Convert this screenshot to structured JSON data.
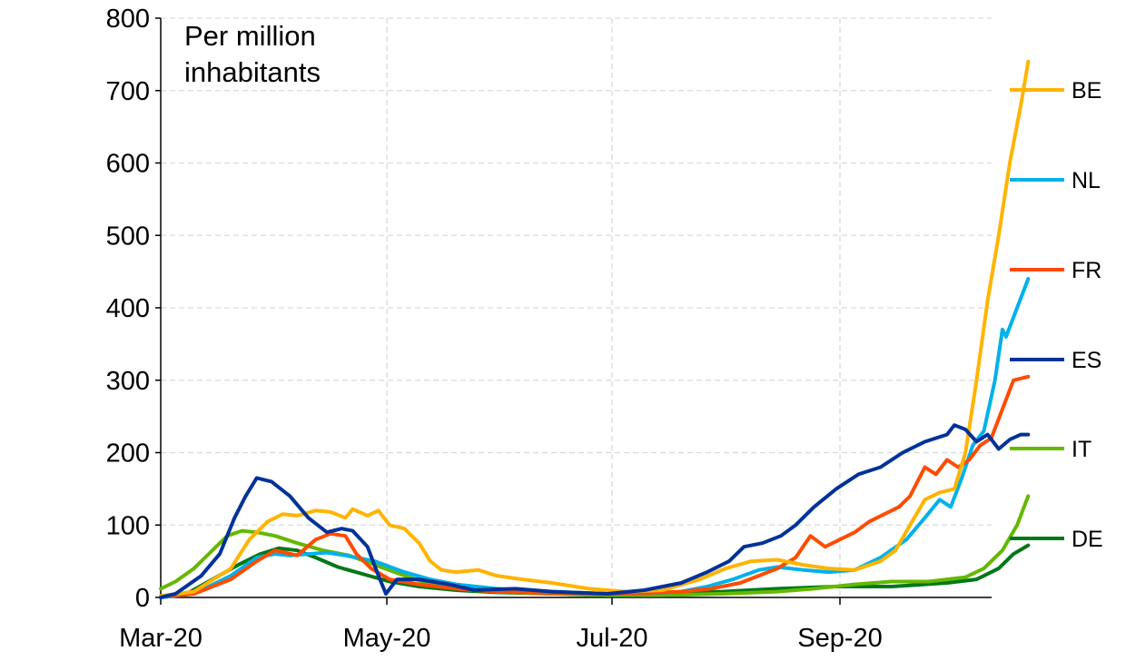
{
  "chart_data": {
    "type": "line",
    "annotation": [
      "Per million",
      "inhabitants"
    ],
    "x_ticks": [
      "Mar-20",
      "May-20",
      "Jul-20",
      "Sep-20"
    ],
    "x_range": [
      "2020-03-01",
      "2020-10-15"
    ],
    "ylim": [
      0,
      800
    ],
    "y_ticks": [
      0,
      100,
      200,
      300,
      400,
      500,
      600,
      700,
      800
    ],
    "grid": true,
    "legend_position": "right",
    "series": [
      {
        "name": "BE",
        "color": "#FFB400",
        "points": [
          [
            "2020-03-01",
            2
          ],
          [
            "2020-03-10",
            8
          ],
          [
            "2020-03-20",
            40
          ],
          [
            "2020-03-25",
            80
          ],
          [
            "2020-03-30",
            105
          ],
          [
            "2020-04-03",
            115
          ],
          [
            "2020-04-07",
            113
          ],
          [
            "2020-04-12",
            120
          ],
          [
            "2020-04-16",
            118
          ],
          [
            "2020-04-20",
            110
          ],
          [
            "2020-04-22",
            122
          ],
          [
            "2020-04-26",
            113
          ],
          [
            "2020-04-29",
            120
          ],
          [
            "2020-05-02",
            100
          ],
          [
            "2020-05-06",
            95
          ],
          [
            "2020-05-10",
            75
          ],
          [
            "2020-05-13",
            50
          ],
          [
            "2020-05-16",
            38
          ],
          [
            "2020-05-20",
            35
          ],
          [
            "2020-05-26",
            38
          ],
          [
            "2020-05-31",
            30
          ],
          [
            "2020-06-07",
            25
          ],
          [
            "2020-06-15",
            20
          ],
          [
            "2020-06-25",
            12
          ],
          [
            "2020-07-05",
            8
          ],
          [
            "2020-07-15",
            10
          ],
          [
            "2020-07-25",
            25
          ],
          [
            "2020-08-01",
            40
          ],
          [
            "2020-08-08",
            50
          ],
          [
            "2020-08-15",
            52
          ],
          [
            "2020-08-22",
            45
          ],
          [
            "2020-08-29",
            40
          ],
          [
            "2020-09-05",
            38
          ],
          [
            "2020-09-12",
            50
          ],
          [
            "2020-09-16",
            65
          ],
          [
            "2020-09-20",
            100
          ],
          [
            "2020-09-24",
            135
          ],
          [
            "2020-09-28",
            145
          ],
          [
            "2020-10-02",
            150
          ],
          [
            "2020-10-05",
            200
          ],
          [
            "2020-10-08",
            300
          ],
          [
            "2020-10-11",
            410
          ],
          [
            "2020-10-14",
            500
          ],
          [
            "2020-10-17",
            600
          ],
          [
            "2020-10-20",
            680
          ],
          [
            "2020-10-22",
            740
          ]
        ]
      },
      {
        "name": "NL",
        "color": "#00B1EA",
        "points": [
          [
            "2020-03-01",
            0
          ],
          [
            "2020-03-10",
            5
          ],
          [
            "2020-03-20",
            30
          ],
          [
            "2020-03-27",
            55
          ],
          [
            "2020-04-01",
            60
          ],
          [
            "2020-04-05",
            58
          ],
          [
            "2020-04-10",
            60
          ],
          [
            "2020-04-15",
            62
          ],
          [
            "2020-04-20",
            58
          ],
          [
            "2020-04-28",
            50
          ],
          [
            "2020-05-06",
            35
          ],
          [
            "2020-05-13",
            25
          ],
          [
            "2020-05-20",
            18
          ],
          [
            "2020-05-31",
            12
          ],
          [
            "2020-06-15",
            8
          ],
          [
            "2020-06-30",
            5
          ],
          [
            "2020-07-10",
            5
          ],
          [
            "2020-07-20",
            8
          ],
          [
            "2020-07-27",
            15
          ],
          [
            "2020-08-03",
            25
          ],
          [
            "2020-08-10",
            38
          ],
          [
            "2020-08-15",
            42
          ],
          [
            "2020-08-22",
            38
          ],
          [
            "2020-08-29",
            35
          ],
          [
            "2020-09-05",
            38
          ],
          [
            "2020-09-12",
            55
          ],
          [
            "2020-09-19",
            80
          ],
          [
            "2020-09-24",
            110
          ],
          [
            "2020-09-28",
            135
          ],
          [
            "2020-10-01",
            125
          ],
          [
            "2020-10-04",
            165
          ],
          [
            "2020-10-07",
            210
          ],
          [
            "2020-10-10",
            230
          ],
          [
            "2020-10-13",
            300
          ],
          [
            "2020-10-15",
            370
          ],
          [
            "2020-10-16",
            360
          ],
          [
            "2020-10-19",
            400
          ],
          [
            "2020-10-22",
            440
          ]
        ]
      },
      {
        "name": "FR",
        "color": "#FF4B00",
        "points": [
          [
            "2020-03-01",
            1
          ],
          [
            "2020-03-10",
            5
          ],
          [
            "2020-03-20",
            25
          ],
          [
            "2020-03-27",
            50
          ],
          [
            "2020-04-01",
            65
          ],
          [
            "2020-04-07",
            58
          ],
          [
            "2020-04-12",
            80
          ],
          [
            "2020-04-16",
            88
          ],
          [
            "2020-04-20",
            85
          ],
          [
            "2020-04-23",
            60
          ],
          [
            "2020-04-27",
            40
          ],
          [
            "2020-05-02",
            25
          ],
          [
            "2020-05-10",
            18
          ],
          [
            "2020-05-20",
            12
          ],
          [
            "2020-05-31",
            8
          ],
          [
            "2020-06-15",
            6
          ],
          [
            "2020-06-30",
            5
          ],
          [
            "2020-07-10",
            6
          ],
          [
            "2020-07-20",
            8
          ],
          [
            "2020-07-28",
            12
          ],
          [
            "2020-08-05",
            20
          ],
          [
            "2020-08-10",
            30
          ],
          [
            "2020-08-15",
            40
          ],
          [
            "2020-08-20",
            55
          ],
          [
            "2020-08-24",
            85
          ],
          [
            "2020-08-28",
            70
          ],
          [
            "2020-09-01",
            80
          ],
          [
            "2020-09-05",
            90
          ],
          [
            "2020-09-09",
            105
          ],
          [
            "2020-09-13",
            115
          ],
          [
            "2020-09-17",
            125
          ],
          [
            "2020-09-20",
            140
          ],
          [
            "2020-09-24",
            180
          ],
          [
            "2020-09-27",
            170
          ],
          [
            "2020-09-30",
            190
          ],
          [
            "2020-10-03",
            180
          ],
          [
            "2020-10-06",
            190
          ],
          [
            "2020-10-09",
            210
          ],
          [
            "2020-10-12",
            220
          ],
          [
            "2020-10-15",
            260
          ],
          [
            "2020-10-18",
            300
          ],
          [
            "2020-10-22",
            305
          ]
        ]
      },
      {
        "name": "ES",
        "color": "#003299",
        "points": [
          [
            "2020-03-01",
            0
          ],
          [
            "2020-03-05",
            5
          ],
          [
            "2020-03-12",
            30
          ],
          [
            "2020-03-17",
            60
          ],
          [
            "2020-03-21",
            110
          ],
          [
            "2020-03-24",
            140
          ],
          [
            "2020-03-27",
            165
          ],
          [
            "2020-03-31",
            160
          ],
          [
            "2020-04-05",
            140
          ],
          [
            "2020-04-10",
            110
          ],
          [
            "2020-04-15",
            90
          ],
          [
            "2020-04-19",
            95
          ],
          [
            "2020-04-22",
            92
          ],
          [
            "2020-04-26",
            70
          ],
          [
            "2020-04-29",
            30
          ],
          [
            "2020-05-01",
            5
          ],
          [
            "2020-05-04",
            25
          ],
          [
            "2020-05-10",
            25
          ],
          [
            "2020-05-18",
            18
          ],
          [
            "2020-05-25",
            10
          ],
          [
            "2020-06-05",
            12
          ],
          [
            "2020-06-15",
            8
          ],
          [
            "2020-06-30",
            5
          ],
          [
            "2020-07-10",
            10
          ],
          [
            "2020-07-20",
            20
          ],
          [
            "2020-07-27",
            35
          ],
          [
            "2020-08-02",
            50
          ],
          [
            "2020-08-06",
            70
          ],
          [
            "2020-08-11",
            75
          ],
          [
            "2020-08-16",
            85
          ],
          [
            "2020-08-20",
            100
          ],
          [
            "2020-08-25",
            125
          ],
          [
            "2020-08-31",
            150
          ],
          [
            "2020-09-06",
            170
          ],
          [
            "2020-09-12",
            180
          ],
          [
            "2020-09-18",
            200
          ],
          [
            "2020-09-24",
            215
          ],
          [
            "2020-09-30",
            225
          ],
          [
            "2020-10-02",
            238
          ],
          [
            "2020-10-05",
            232
          ],
          [
            "2020-10-08",
            215
          ],
          [
            "2020-10-11",
            225
          ],
          [
            "2020-10-14",
            205
          ],
          [
            "2020-10-17",
            218
          ],
          [
            "2020-10-20",
            225
          ],
          [
            "2020-10-22",
            225
          ]
        ]
      },
      {
        "name": "IT",
        "color": "#65B800",
        "points": [
          [
            "2020-03-01",
            12
          ],
          [
            "2020-03-05",
            22
          ],
          [
            "2020-03-10",
            40
          ],
          [
            "2020-03-15",
            65
          ],
          [
            "2020-03-19",
            85
          ],
          [
            "2020-03-23",
            92
          ],
          [
            "2020-03-27",
            90
          ],
          [
            "2020-04-01",
            85
          ],
          [
            "2020-04-07",
            75
          ],
          [
            "2020-04-14",
            65
          ],
          [
            "2020-04-21",
            58
          ],
          [
            "2020-04-28",
            45
          ],
          [
            "2020-05-05",
            32
          ],
          [
            "2020-05-12",
            20
          ],
          [
            "2020-05-20",
            12
          ],
          [
            "2020-05-31",
            8
          ],
          [
            "2020-06-15",
            5
          ],
          [
            "2020-06-30",
            3
          ],
          [
            "2020-07-15",
            3
          ],
          [
            "2020-07-31",
            5
          ],
          [
            "2020-08-15",
            8
          ],
          [
            "2020-08-25",
            12
          ],
          [
            "2020-09-05",
            18
          ],
          [
            "2020-09-15",
            22
          ],
          [
            "2020-09-25",
            22
          ],
          [
            "2020-10-05",
            28
          ],
          [
            "2020-10-10",
            40
          ],
          [
            "2020-10-15",
            65
          ],
          [
            "2020-10-19",
            100
          ],
          [
            "2020-10-22",
            140
          ]
        ]
      },
      {
        "name": "DE",
        "color": "#007816",
        "points": [
          [
            "2020-03-01",
            0
          ],
          [
            "2020-03-08",
            5
          ],
          [
            "2020-03-15",
            25
          ],
          [
            "2020-03-22",
            45
          ],
          [
            "2020-03-28",
            60
          ],
          [
            "2020-04-02",
            68
          ],
          [
            "2020-04-07",
            65
          ],
          [
            "2020-04-12",
            55
          ],
          [
            "2020-04-18",
            42
          ],
          [
            "2020-04-25",
            32
          ],
          [
            "2020-05-02",
            22
          ],
          [
            "2020-05-10",
            15
          ],
          [
            "2020-05-20",
            10
          ],
          [
            "2020-05-31",
            7
          ],
          [
            "2020-06-15",
            5
          ],
          [
            "2020-06-30",
            5
          ],
          [
            "2020-07-15",
            6
          ],
          [
            "2020-07-31",
            8
          ],
          [
            "2020-08-15",
            12
          ],
          [
            "2020-08-31",
            15
          ],
          [
            "2020-09-15",
            15
          ],
          [
            "2020-09-30",
            20
          ],
          [
            "2020-10-08",
            25
          ],
          [
            "2020-10-14",
            40
          ],
          [
            "2020-10-18",
            60
          ],
          [
            "2020-10-22",
            72
          ]
        ]
      }
    ]
  }
}
